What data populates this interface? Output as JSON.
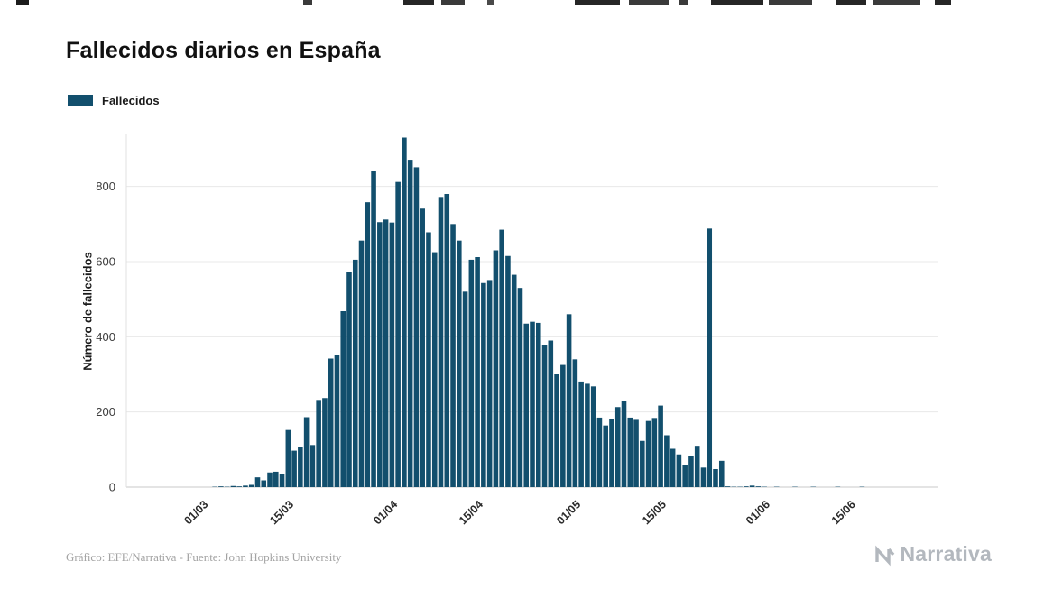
{
  "header": {
    "title": "Fallecidos diarios en España"
  },
  "legend": {
    "label": "Fallecidos",
    "swatch_color": "#124f6d"
  },
  "chart_data": {
    "type": "bar",
    "title": "Fallecidos diarios en España",
    "series_name": "Fallecidos",
    "xlabel": "",
    "ylabel": "Número de fallecidos",
    "bar_color": "#124f6d",
    "grid": "horizontal",
    "legend_position": "top-left",
    "ylim": [
      0,
      960
    ],
    "yticks": [
      0,
      200,
      400,
      600,
      800
    ],
    "xticks": [
      {
        "label": "01/03",
        "index": 13
      },
      {
        "label": "15/03",
        "index": 27
      },
      {
        "label": "01/04",
        "index": 44
      },
      {
        "label": "15/04",
        "index": 58
      },
      {
        "label": "01/05",
        "index": 74
      },
      {
        "label": "15/05",
        "index": 88
      },
      {
        "label": "01/06",
        "index": 105
      },
      {
        "label": "15/06",
        "index": 119
      }
    ],
    "categories": [
      "17/02",
      "18/02",
      "19/02",
      "20/02",
      "21/02",
      "22/02",
      "23/02",
      "24/02",
      "25/02",
      "26/02",
      "27/02",
      "28/02",
      "29/02",
      "01/03",
      "02/03",
      "03/03",
      "04/03",
      "05/03",
      "06/03",
      "07/03",
      "08/03",
      "09/03",
      "10/03",
      "11/03",
      "12/03",
      "13/03",
      "14/03",
      "15/03",
      "16/03",
      "17/03",
      "18/03",
      "19/03",
      "20/03",
      "21/03",
      "22/03",
      "23/03",
      "24/03",
      "25/03",
      "26/03",
      "27/03",
      "28/03",
      "29/03",
      "30/03",
      "31/03",
      "01/04",
      "02/04",
      "03/04",
      "04/04",
      "05/04",
      "06/04",
      "07/04",
      "08/04",
      "09/04",
      "10/04",
      "11/04",
      "12/04",
      "13/04",
      "14/04",
      "15/04",
      "16/04",
      "17/04",
      "18/04",
      "19/04",
      "20/04",
      "21/04",
      "22/04",
      "23/04",
      "24/04",
      "25/04",
      "26/04",
      "27/04",
      "28/04",
      "29/04",
      "30/04",
      "01/05",
      "02/05",
      "03/05",
      "04/05",
      "05/05",
      "06/05",
      "07/05",
      "08/05",
      "09/05",
      "10/05",
      "11/05",
      "12/05",
      "13/05",
      "14/05",
      "15/05",
      "16/05",
      "17/05",
      "18/05",
      "19/05",
      "20/05",
      "21/05",
      "22/05",
      "23/05",
      "24/05",
      "25/05",
      "26/05",
      "27/05",
      "28/05",
      "29/05",
      "30/05",
      "31/05",
      "01/06",
      "02/06",
      "03/06",
      "04/06",
      "05/06",
      "06/06",
      "07/06",
      "08/06",
      "09/06",
      "10/06",
      "11/06",
      "12/06",
      "13/06",
      "14/06",
      "15/06",
      "16/06",
      "17/06",
      "18/06",
      "19/06",
      "20/06",
      "21/06",
      "22/06",
      "23/06",
      "24/06",
      "25/06",
      "26/06",
      "27/06",
      "28/06"
    ],
    "values": [
      0,
      0,
      0,
      0,
      0,
      0,
      0,
      0,
      0,
      0,
      0,
      0,
      0,
      0,
      1,
      2,
      1,
      3,
      2,
      4,
      6,
      26,
      18,
      39,
      41,
      36,
      152,
      97,
      106,
      186,
      112,
      232,
      237,
      342,
      351,
      468,
      572,
      605,
      656,
      758,
      840,
      705,
      712,
      704,
      812,
      930,
      871,
      851,
      741,
      678,
      625,
      772,
      780,
      700,
      656,
      520,
      605,
      612,
      543,
      551,
      630,
      685,
      615,
      565,
      530,
      435,
      440,
      437,
      378,
      390,
      300,
      325,
      460,
      340,
      281,
      275,
      268,
      185,
      164,
      182,
      213,
      229,
      185,
      179,
      123,
      176,
      184,
      217,
      138,
      102,
      87,
      59,
      83,
      110,
      52,
      688,
      48,
      70,
      2,
      1,
      1,
      2,
      4,
      2,
      1,
      0,
      1,
      0,
      0,
      1,
      0,
      0,
      1,
      0,
      0,
      0,
      1,
      0,
      0,
      0,
      1,
      0,
      0,
      0,
      0,
      0,
      0,
      0,
      0,
      0,
      0,
      0,
      0
    ]
  },
  "footer": {
    "credit": "Gráfico: EFE/Narrativa - Fuente: John Hopkins University"
  },
  "branding": {
    "wordmark": "Narrativa"
  }
}
